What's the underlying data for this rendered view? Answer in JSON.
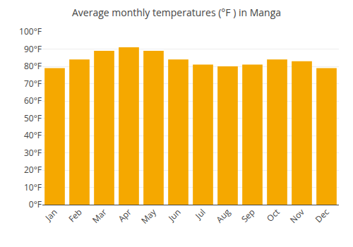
{
  "chart_data": {
    "type": "bar",
    "title": "Average monthly temperatures (°F ) in Manga",
    "categories": [
      "Jan",
      "Feb",
      "Mar",
      "Apr",
      "May",
      "Jun",
      "Jul",
      "Aug",
      "Sep",
      "Oct",
      "Nov",
      "Dec"
    ],
    "values": [
      79,
      84,
      89,
      91,
      89,
      84,
      81,
      80,
      81,
      84,
      83,
      79
    ],
    "color": "#F5A800",
    "ylim": [
      0,
      100
    ],
    "yticks": [
      {
        "value": 0,
        "label": "0°F"
      },
      {
        "value": 10,
        "label": "10°F"
      },
      {
        "value": 20,
        "label": "20°F"
      },
      {
        "value": 30,
        "label": "30°F"
      },
      {
        "value": 40,
        "label": "40°F"
      },
      {
        "value": 50,
        "label": "50°F"
      },
      {
        "value": 60,
        "label": "60°F"
      },
      {
        "value": 70,
        "label": "70°F"
      },
      {
        "value": 80,
        "label": "80°F"
      },
      {
        "value": 90,
        "label": "90°F"
      },
      {
        "value": 100,
        "label": "100°F"
      }
    ],
    "grid": true
  }
}
